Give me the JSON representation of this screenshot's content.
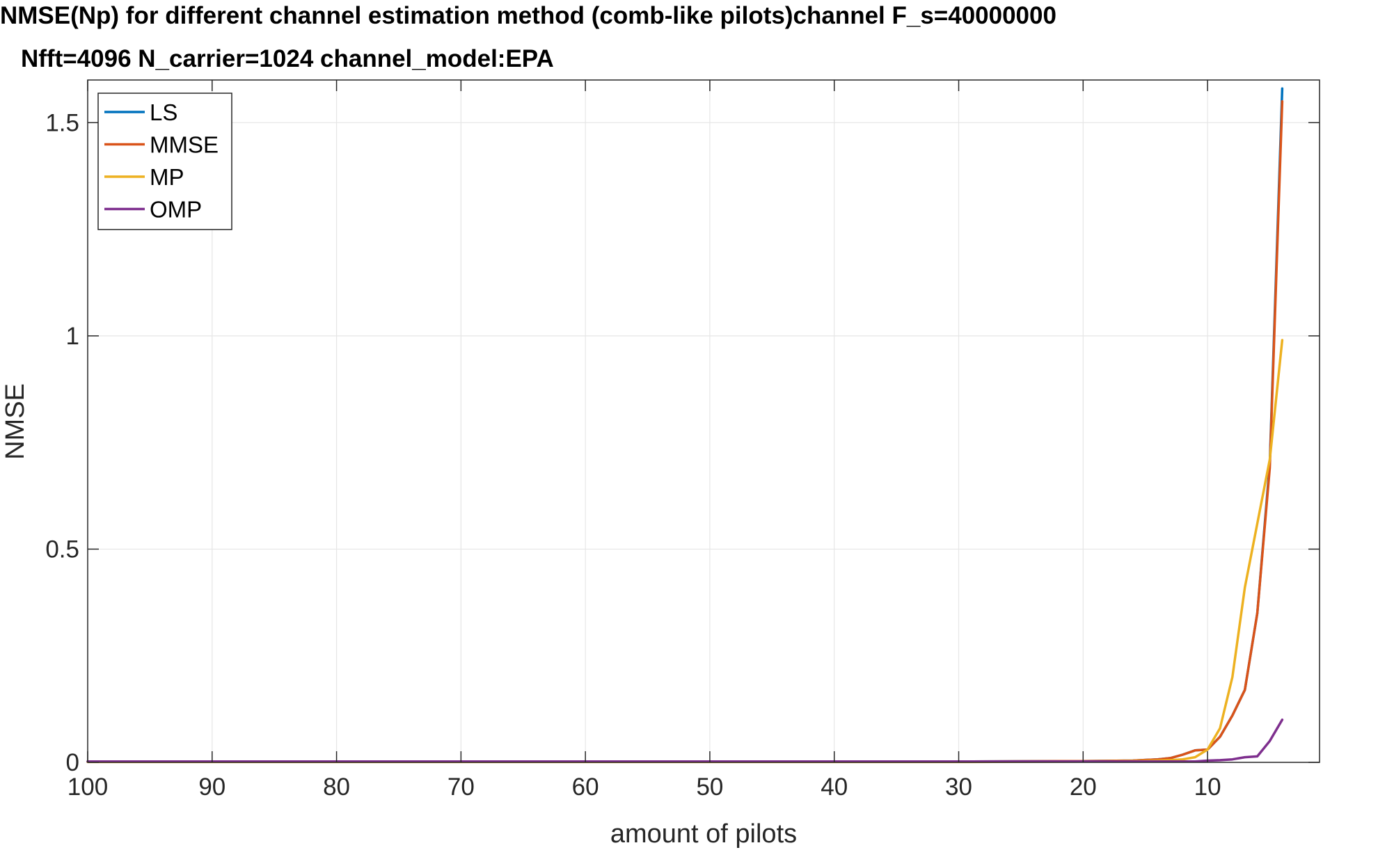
{
  "chart_data": {
    "type": "line",
    "title": "NMSE(Np) for different channel estimation method (comb-like pilots)channel F_s=40000000",
    "subtitle": "Nfft=4096 N_carrier=1024 channel_model:EPA",
    "xlabel": "amount of pilots",
    "ylabel": "NMSE",
    "xlim": [
      100,
      1
    ],
    "x_reversed": true,
    "ylim": [
      0,
      1.6
    ],
    "xticks": [
      100,
      90,
      80,
      70,
      60,
      50,
      40,
      30,
      20,
      10
    ],
    "xtick_labels": [
      "100",
      "90",
      "80",
      "70",
      "60",
      "50",
      "40",
      "30",
      "20",
      "10"
    ],
    "yticks": [
      0,
      0.5,
      1,
      1.5
    ],
    "ytick_labels": [
      "0",
      "0.5",
      "1",
      "1.5"
    ],
    "grid": true,
    "legend_position": "top-left",
    "series": [
      {
        "name": "LS",
        "color": "#0072BD",
        "x": [
          100,
          90,
          80,
          70,
          60,
          50,
          40,
          30,
          20,
          16,
          14,
          13,
          12,
          11,
          10,
          9,
          8,
          7,
          6,
          5,
          4
        ],
        "values": [
          0.002,
          0.002,
          0.002,
          0.002,
          0.002,
          0.002,
          0.002,
          0.002,
          0.003,
          0.004,
          0.007,
          0.01,
          0.018,
          0.028,
          0.03,
          0.06,
          0.11,
          0.17,
          0.35,
          0.7,
          1.58
        ]
      },
      {
        "name": "MMSE",
        "color": "#D95319",
        "x": [
          100,
          90,
          80,
          70,
          60,
          50,
          40,
          30,
          20,
          16,
          14,
          13,
          12,
          11,
          10,
          9,
          8,
          7,
          6,
          5,
          4
        ],
        "values": [
          0.002,
          0.002,
          0.002,
          0.002,
          0.002,
          0.002,
          0.002,
          0.002,
          0.003,
          0.004,
          0.007,
          0.01,
          0.018,
          0.028,
          0.03,
          0.06,
          0.11,
          0.17,
          0.35,
          0.69,
          1.55
        ]
      },
      {
        "name": "MP",
        "color": "#EDB120",
        "x": [
          100,
          90,
          80,
          70,
          60,
          50,
          40,
          30,
          20,
          16,
          14,
          13,
          12,
          11,
          10,
          9,
          8,
          7,
          6,
          5,
          4
        ],
        "values": [
          0.001,
          0.001,
          0.001,
          0.001,
          0.001,
          0.001,
          0.001,
          0.001,
          0.002,
          0.003,
          0.004,
          0.005,
          0.007,
          0.012,
          0.03,
          0.08,
          0.2,
          0.41,
          0.56,
          0.71,
          0.99
        ]
      },
      {
        "name": "OMP",
        "color": "#7E2F8E",
        "x": [
          100,
          90,
          80,
          70,
          60,
          50,
          40,
          30,
          20,
          16,
          14,
          13,
          12,
          11,
          10,
          9,
          8,
          7,
          6,
          5,
          4
        ],
        "values": [
          0.002,
          0.002,
          0.002,
          0.002,
          0.002,
          0.002,
          0.002,
          0.002,
          0.002,
          0.002,
          0.002,
          0.002,
          0.002,
          0.002,
          0.004,
          0.005,
          0.007,
          0.012,
          0.014,
          0.05,
          0.1
        ]
      }
    ]
  }
}
